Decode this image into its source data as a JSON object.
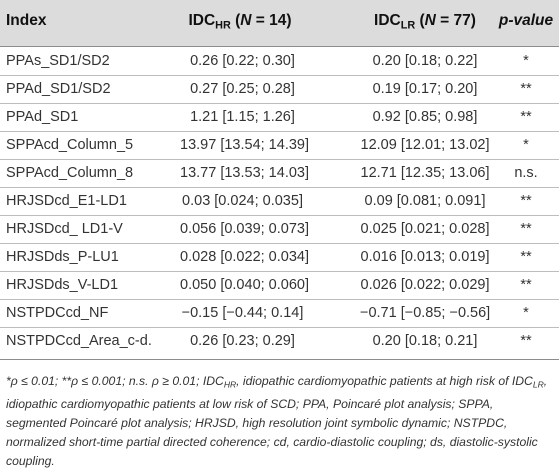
{
  "table": {
    "headers": {
      "index": "Index",
      "hr": {
        "base": "IDC",
        "sub": "HR",
        "open": " (",
        "n": "N",
        "val": " = 14)"
      },
      "lr": {
        "base": "IDC",
        "sub": "LR",
        "open": " (",
        "n": "N",
        "val": " = 77)"
      },
      "p": "p-value"
    },
    "rows": [
      {
        "index": "PPAs_SD1/SD2",
        "hr": "0.26 [0.22; 0.30]",
        "lr": "0.20 [0.18; 0.22]",
        "p": "*"
      },
      {
        "index": "PPAd_SD1/SD2",
        "hr": "0.27 [0.25; 0.28]",
        "lr": "0.19 [0.17; 0.20]",
        "p": "**"
      },
      {
        "index": "PPAd_SD1",
        "hr": "1.21 [1.15; 1.26]",
        "lr": "0.92 [0.85; 0.98]",
        "p": "**"
      },
      {
        "index": "SPPAcd_Column_5",
        "hr": "13.97 [13.54; 14.39]",
        "lr": "12.09 [12.01; 13.02]",
        "p": "*"
      },
      {
        "index": "SPPAcd_Column_8",
        "hr": "13.77 [13.53; 14.03]",
        "lr": "12.71 [12.35; 13.06]",
        "p": "n.s."
      },
      {
        "index": "HRJSDcd_E1-LD1",
        "hr": "0.03 [0.024; 0.035]",
        "lr": "0.09 [0.081; 0.091]",
        "p": "**"
      },
      {
        "index": "HRJSDcd_ LD1-V",
        "hr": "0.056 [0.039; 0.073]",
        "lr": "0.025 [0.021; 0.028]",
        "p": "**"
      },
      {
        "index": "HRJSDds_P-LU1",
        "hr": "0.028 [0.022; 0.034]",
        "lr": "0.016 [0.013; 0.019]",
        "p": "**"
      },
      {
        "index": "HRJSDds_V-LD1",
        "hr": "0.050 [0.040; 0.060]",
        "lr": "0.026 [0.022; 0.029]",
        "p": "**"
      },
      {
        "index": "NSTPDCcd_NF",
        "hr": "−0.15 [−0.44; 0.14]",
        "lr": "−0.71 [−0.85; −0.56]",
        "p": "*"
      },
      {
        "index": "NSTPDCcd_Area_c-d.",
        "hr": "0.26 [0.23; 0.29]",
        "lr": "0.20 [0.18; 0.21]",
        "p": "**"
      }
    ]
  },
  "footnote": {
    "a": "*ρ ≤ 0.01; **ρ ≤ 0.001; n.s. ρ ≥ 0.01; IDC",
    "a_sub": "HR",
    "b": ", idiopathic cardiomyopathic patients at high risk of IDC",
    "b_sub": "LR",
    "c": ", idiopathic cardiomyopathic patients at low risk of SCD; PPA, Poincaré plot analysis; SPPA, segmented Poincaré plot analysis; HRJSD, high resolution joint symbolic dynamic; NSTPDC, normalized short-time partial directed coherence; cd, cardio-diastolic coupling; ds, diastolic-systolic coupling."
  }
}
